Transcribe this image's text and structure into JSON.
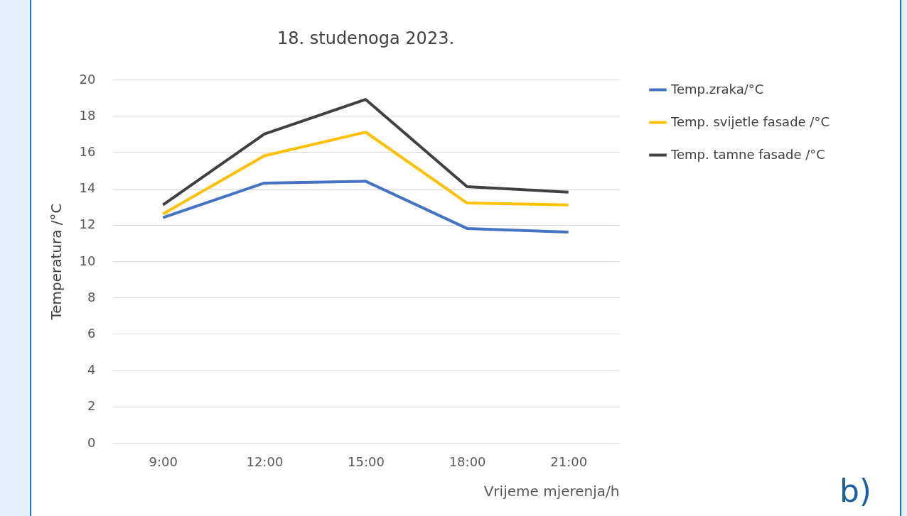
{
  "chart_data": {
    "type": "line",
    "title": "18. studenoga 2023.",
    "xlabel": "Vrijeme mjerenja/h",
    "ylabel": "Temperatura /°C",
    "categories": [
      "9:00",
      "12:00",
      "15:00",
      "18:00",
      "21:00"
    ],
    "series": [
      {
        "name": "Temp.zraka/°C",
        "color": "#4472c4",
        "values": [
          12.4,
          14.3,
          14.4,
          11.8,
          11.6
        ]
      },
      {
        "name": "Temp. svijetle fasade /°C",
        "color": "#ffc000",
        "values": [
          12.6,
          15.8,
          17.1,
          13.2,
          13.1
        ]
      },
      {
        "name": "Temp. tamne fasade /°C",
        "color": "#404040",
        "values": [
          13.1,
          17.0,
          18.9,
          14.1,
          13.8
        ]
      }
    ],
    "ylim": [
      0,
      20
    ],
    "yticks": [
      0,
      2,
      4,
      6,
      8,
      10,
      12,
      14,
      16,
      18,
      20
    ],
    "grid": "y",
    "legend": "right",
    "marker": "none",
    "line_style": "solid",
    "annotations": [
      "b)"
    ]
  }
}
